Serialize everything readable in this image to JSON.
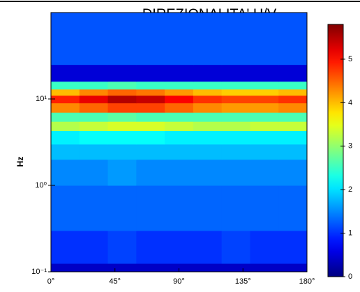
{
  "chart_data": {
    "type": "heatmap",
    "title": "DIREZIONALITA' H/V",
    "ylabel": "Hz",
    "x_bins": [
      0,
      20,
      40,
      60,
      80,
      100,
      120,
      140,
      160,
      180
    ],
    "y_bins": [
      0.1,
      0.125,
      0.3,
      1,
      2,
      3,
      4.3,
      5.5,
      7,
      9,
      11,
      13,
      16,
      25,
      100
    ],
    "z": [
      [
        0.4,
        0.4,
        0.4,
        0.4,
        0.4,
        0.4,
        0.4,
        0.4,
        0.4
      ],
      [
        1.0,
        1.0,
        1.1,
        1.0,
        1.0,
        1.0,
        1.1,
        1.0,
        1.0
      ],
      [
        1.3,
        1.3,
        1.3,
        1.3,
        1.3,
        1.3,
        1.3,
        1.3,
        1.3
      ],
      [
        1.5,
        1.5,
        1.6,
        1.5,
        1.5,
        1.5,
        1.5,
        1.5,
        1.5
      ],
      [
        1.8,
        1.8,
        1.8,
        1.8,
        1.8,
        1.8,
        1.8,
        1.8,
        1.8
      ],
      [
        2.1,
        2.2,
        2.2,
        2.2,
        2.1,
        2.1,
        2.1,
        2.1,
        2.1
      ],
      [
        3.2,
        3.3,
        3.4,
        3.4,
        3.3,
        3.2,
        3.2,
        3.3,
        3.3
      ],
      [
        2.6,
        2.6,
        2.7,
        2.6,
        2.6,
        2.6,
        2.6,
        2.6,
        2.6
      ],
      [
        4.3,
        4.5,
        4.7,
        4.7,
        4.5,
        4.3,
        4.2,
        4.2,
        4.3
      ],
      [
        4.9,
        5.2,
        5.5,
        5.4,
        5.1,
        4.8,
        4.7,
        4.7,
        4.8
      ],
      [
        4.0,
        4.3,
        4.5,
        4.4,
        4.2,
        4.0,
        3.9,
        3.9,
        4.0
      ],
      [
        2.5,
        2.5,
        2.6,
        2.5,
        2.5,
        2.5,
        2.5,
        2.5,
        2.5
      ],
      [
        0.5,
        0.5,
        0.5,
        0.5,
        0.5,
        0.5,
        0.5,
        0.5,
        0.5
      ],
      [
        1.2,
        1.2,
        1.2,
        1.2,
        1.2,
        1.2,
        1.2,
        1.2,
        1.2
      ]
    ],
    "xlim": [
      0,
      180
    ],
    "xticks": [
      {
        "value": 0,
        "label": "0°"
      },
      {
        "value": 45,
        "label": "45°"
      },
      {
        "value": 90,
        "label": "90°"
      },
      {
        "value": 135,
        "label": "135°"
      },
      {
        "value": 180,
        "label": "180°"
      }
    ],
    "ylim": [
      0.1,
      100
    ],
    "ylog": true,
    "yticks": [
      {
        "value": 0.1,
        "label": "10⁻¹"
      },
      {
        "value": 1,
        "label": "10⁰"
      },
      {
        "value": 10,
        "label": "10¹"
      }
    ],
    "colormap": "jet",
    "clim": [
      0,
      5.8
    ],
    "cticks": [
      0,
      1,
      2,
      3,
      4,
      5
    ]
  }
}
